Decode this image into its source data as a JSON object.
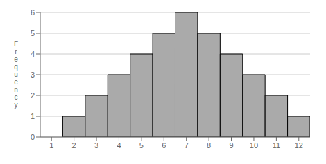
{
  "chart_data": {
    "type": "histogram",
    "bins": [
      1.5,
      2.5,
      3.5,
      4.5,
      5.5,
      6.5,
      7.5,
      8.5,
      9.5,
      10.5,
      11.5,
      12.5
    ],
    "values": [
      1,
      2,
      3,
      4,
      5,
      6,
      5,
      4,
      3,
      2,
      1
    ],
    "color": "#aaaaaa",
    "xlim": [
      0.5,
      12.5
    ],
    "ylim": [
      0,
      6
    ],
    "xticks": [
      1,
      2,
      3,
      4,
      5,
      6,
      7,
      8,
      9,
      10,
      11,
      12
    ],
    "yticks": [
      0,
      1,
      2,
      3,
      4,
      5,
      6
    ],
    "ylabel": "F\nr\ne\nq\nu\ne\nn\nc\ny",
    "grid": true
  }
}
